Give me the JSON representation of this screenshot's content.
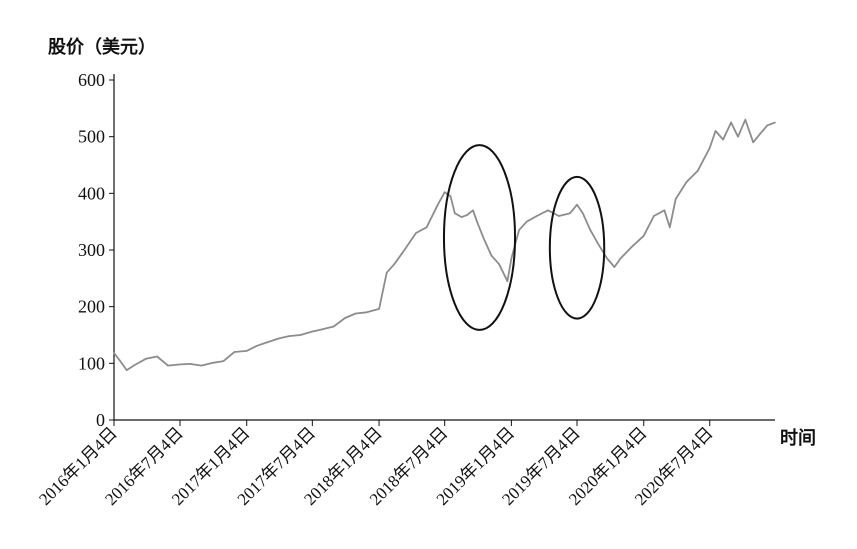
{
  "chart_data": {
    "type": "line",
    "title": "",
    "ylabel": "股价（美元）",
    "xlabel": "时间",
    "ylim": [
      0,
      600
    ],
    "yticks": [
      0,
      100,
      200,
      300,
      400,
      500,
      600
    ],
    "xlim": [
      "2016-01-04",
      "2020-12-31"
    ],
    "xtick_labels": [
      "2016年1月4日",
      "2016年7月4日",
      "2017年1月4日",
      "2017年7月4日",
      "2018年1月4日",
      "2018年7月4日",
      "2019年1月4日",
      "2019年7月4日",
      "2020年1月4日",
      "2020年7月4日"
    ],
    "xtick_dates": [
      "2016-01-04",
      "2016-07-04",
      "2017-01-04",
      "2017-07-04",
      "2018-01-04",
      "2018-07-04",
      "2019-01-04",
      "2019-07-04",
      "2020-01-04",
      "2020-07-04"
    ],
    "grid": false,
    "series": [
      {
        "color": "#8c8c8c",
        "points": [
          [
            "2016-01-04",
            118
          ],
          [
            "2016-01-20",
            105
          ],
          [
            "2016-02-08",
            88
          ],
          [
            "2016-03-01",
            97
          ],
          [
            "2016-04-01",
            108
          ],
          [
            "2016-05-02",
            112
          ],
          [
            "2016-06-01",
            96
          ],
          [
            "2016-07-01",
            98
          ],
          [
            "2016-08-01",
            99
          ],
          [
            "2016-09-01",
            96
          ],
          [
            "2016-10-03",
            101
          ],
          [
            "2016-11-01",
            104
          ],
          [
            "2016-12-01",
            120
          ],
          [
            "2017-01-04",
            122
          ],
          [
            "2017-02-01",
            131
          ],
          [
            "2017-03-01",
            137
          ],
          [
            "2017-04-03",
            144
          ],
          [
            "2017-05-01",
            148
          ],
          [
            "2017-06-01",
            150
          ],
          [
            "2017-07-03",
            156
          ],
          [
            "2017-08-01",
            160
          ],
          [
            "2017-09-01",
            165
          ],
          [
            "2017-10-02",
            180
          ],
          [
            "2017-11-01",
            188
          ],
          [
            "2017-12-01",
            190
          ],
          [
            "2018-01-04",
            196
          ],
          [
            "2018-01-25",
            260
          ],
          [
            "2018-02-15",
            275
          ],
          [
            "2018-03-15",
            300
          ],
          [
            "2018-04-16",
            330
          ],
          [
            "2018-05-15",
            340
          ],
          [
            "2018-06-15",
            380
          ],
          [
            "2018-07-04",
            402
          ],
          [
            "2018-07-20",
            395
          ],
          [
            "2018-08-01",
            365
          ],
          [
            "2018-08-20",
            358
          ],
          [
            "2018-09-04",
            362
          ],
          [
            "2018-09-20",
            370
          ],
          [
            "2018-10-01",
            350
          ],
          [
            "2018-10-20",
            320
          ],
          [
            "2018-11-10",
            290
          ],
          [
            "2018-12-01",
            275
          ],
          [
            "2018-12-24",
            245
          ],
          [
            "2019-01-04",
            285
          ],
          [
            "2019-01-25",
            335
          ],
          [
            "2019-02-15",
            350
          ],
          [
            "2019-03-15",
            360
          ],
          [
            "2019-04-15",
            370
          ],
          [
            "2019-05-15",
            360
          ],
          [
            "2019-06-15",
            365
          ],
          [
            "2019-07-04",
            380
          ],
          [
            "2019-07-20",
            365
          ],
          [
            "2019-08-10",
            335
          ],
          [
            "2019-09-01",
            310
          ],
          [
            "2019-09-25",
            285
          ],
          [
            "2019-10-15",
            270
          ],
          [
            "2019-11-01",
            285
          ],
          [
            "2019-12-01",
            305
          ],
          [
            "2020-01-04",
            325
          ],
          [
            "2020-02-01",
            360
          ],
          [
            "2020-03-01",
            370
          ],
          [
            "2020-03-16",
            340
          ],
          [
            "2020-04-01",
            390
          ],
          [
            "2020-05-01",
            420
          ],
          [
            "2020-06-01",
            440
          ],
          [
            "2020-07-04",
            480
          ],
          [
            "2020-07-20",
            510
          ],
          [
            "2020-08-10",
            495
          ],
          [
            "2020-09-01",
            525
          ],
          [
            "2020-09-20",
            500
          ],
          [
            "2020-10-10",
            530
          ],
          [
            "2020-11-01",
            490
          ],
          [
            "2020-11-20",
            505
          ],
          [
            "2020-12-10",
            520
          ],
          [
            "2020-12-31",
            525
          ]
        ]
      }
    ],
    "annotations": [
      {
        "type": "ellipse",
        "center_x": "2018-10-08",
        "center_y": 322,
        "radius_days": 98,
        "radius_value": 163,
        "stroke": "#111111"
      },
      {
        "type": "ellipse",
        "center_x": "2019-07-04",
        "center_y": 304,
        "radius_days": 75,
        "radius_value": 125,
        "stroke": "#111111"
      }
    ]
  }
}
